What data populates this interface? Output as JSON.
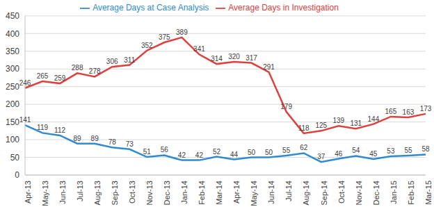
{
  "chart_data": {
    "type": "line",
    "categories": [
      "Apr-13",
      "May-13",
      "Jun-13",
      "Jul-13",
      "Aug-13",
      "Sep-13",
      "Oct-13",
      "Nov-13",
      "Dec-13",
      "Jan-14",
      "Feb-14",
      "Mar-14",
      "Apr-14",
      "May-14",
      "Jun-14",
      "Jul-14",
      "Aug-14",
      "Sep-14",
      "Oct-14",
      "Nov-14",
      "Dec-14",
      "Jan-15",
      "Feb-15",
      "Mar-15"
    ],
    "series": [
      {
        "name": "Average Days at Case Analysis",
        "color": "#2e8bd0",
        "values": [
          141,
          119,
          112,
          89,
          89,
          78,
          73,
          51,
          56,
          42,
          42,
          52,
          44,
          50,
          50,
          55,
          62,
          37,
          46,
          54,
          45,
          53,
          55,
          58
        ]
      },
      {
        "name": "Average Days in Investigation",
        "color": "#e0403c",
        "values": [
          246,
          265,
          259,
          288,
          278,
          306,
          311,
          352,
          375,
          389,
          341,
          314,
          320,
          317,
          291,
          179,
          118,
          125,
          139,
          131,
          144,
          165,
          163,
          173
        ]
      }
    ],
    "ylim": [
      0,
      450
    ],
    "yticks": [
      0,
      50,
      100,
      150,
      200,
      250,
      300,
      350,
      400,
      450
    ],
    "grid": true,
    "legend": "top",
    "data_labels": true
  }
}
